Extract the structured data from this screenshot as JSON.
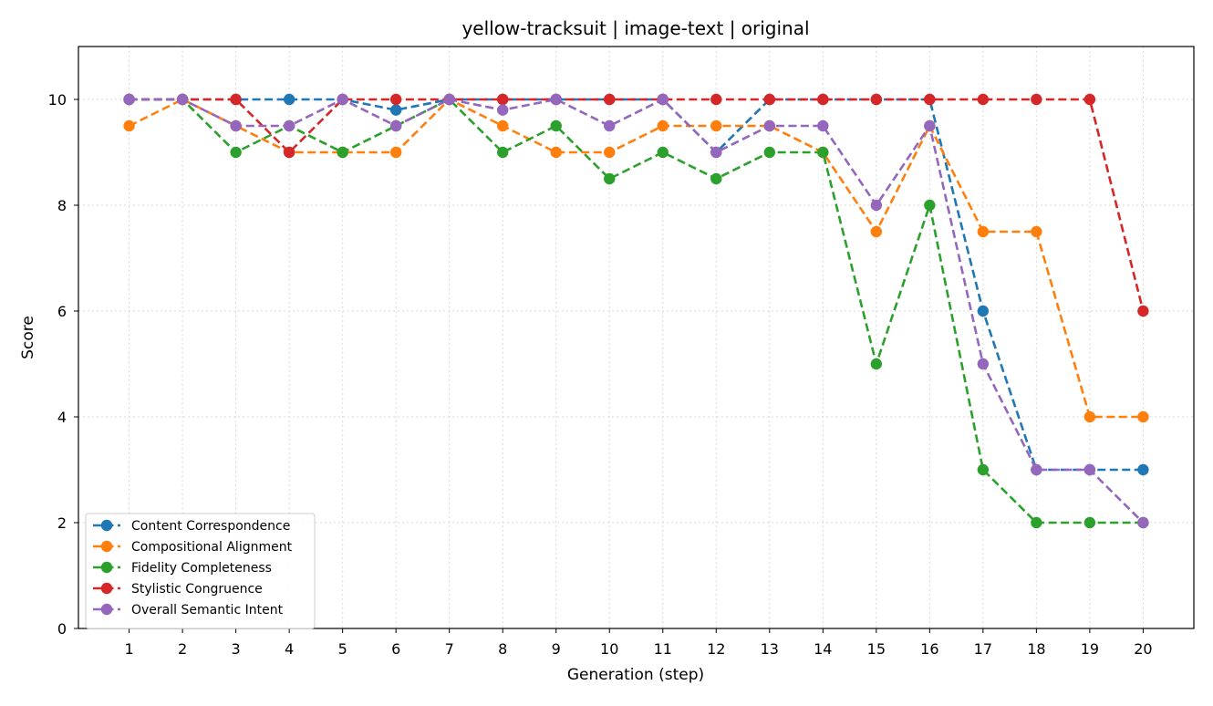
{
  "chart_data": {
    "type": "line",
    "title": "yellow-tracksuit | image-text | original",
    "xlabel": "Generation (step)",
    "ylabel": "Score",
    "x": [
      1,
      2,
      3,
      4,
      5,
      6,
      7,
      8,
      9,
      10,
      11,
      12,
      13,
      14,
      15,
      16,
      17,
      18,
      19,
      20
    ],
    "xticks": [
      "1",
      "2",
      "3",
      "4",
      "5",
      "6",
      "7",
      "8",
      "9",
      "10",
      "11",
      "12",
      "13",
      "14",
      "15",
      "16",
      "17",
      "18",
      "19",
      "20"
    ],
    "yticks": [
      "0",
      "2",
      "4",
      "6",
      "8",
      "10"
    ],
    "xlim": [
      0.05,
      20.95
    ],
    "ylim": [
      0,
      11
    ],
    "grid": true,
    "legend_position": "bottom-left",
    "series": [
      {
        "name": "Content Correspondence",
        "color": "#1f77b4",
        "values": [
          10,
          10,
          10,
          10,
          10,
          9.8,
          10,
          10,
          10,
          10,
          10,
          9,
          10,
          10,
          10,
          10,
          6,
          3,
          3,
          3
        ]
      },
      {
        "name": "Compositional Alignment",
        "color": "#ff7f0e",
        "values": [
          9.5,
          10,
          9.5,
          9,
          9,
          9,
          10,
          9.5,
          9,
          9,
          9.5,
          9.5,
          9.5,
          9,
          7.5,
          9.5,
          7.5,
          7.5,
          4,
          4
        ]
      },
      {
        "name": "Fidelity Completeness",
        "color": "#2ca02c",
        "values": [
          10,
          10,
          9,
          9.5,
          9,
          9.5,
          10,
          9,
          9.5,
          8.5,
          9,
          8.5,
          9,
          9,
          5,
          8,
          3,
          2,
          2,
          2
        ]
      },
      {
        "name": "Stylistic Congruence",
        "color": "#d62728",
        "values": [
          10,
          10,
          10,
          9,
          10,
          10,
          10,
          10,
          10,
          10,
          10,
          10,
          10,
          10,
          10,
          10,
          10,
          10,
          10,
          6
        ]
      },
      {
        "name": "Overall Semantic Intent",
        "color": "#9467bd",
        "values": [
          10,
          10,
          9.5,
          9.5,
          10,
          9.5,
          10,
          9.8,
          10,
          9.5,
          10,
          9,
          9.5,
          9.5,
          8,
          9.5,
          5,
          3,
          3,
          2
        ]
      }
    ]
  }
}
